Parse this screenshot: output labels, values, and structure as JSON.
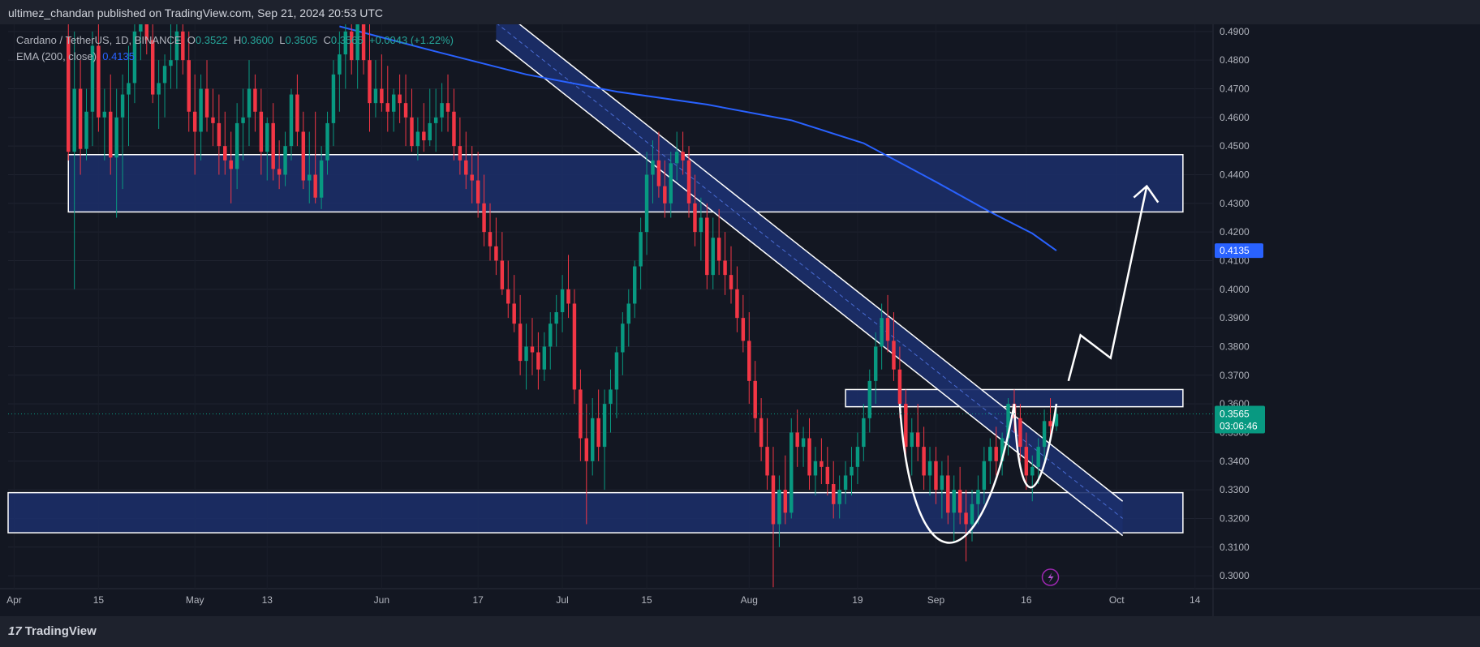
{
  "header": {
    "published_by": "ultimez_chandan published on TradingView.com, Sep 21, 2024 20:53 UTC"
  },
  "legend": {
    "symbol": "Cardano / TetherUS, 1D, BINANCE",
    "open_label": "O",
    "open": "0.3522",
    "high_label": "H",
    "high": "0.3600",
    "low_label": "L",
    "low": "0.3505",
    "close_label": "C",
    "close": "0.3565",
    "change": "+0.0043 (+1.22%)",
    "ema_label": "EMA (200, close)",
    "ema_value": "0.4135"
  },
  "price_axis": {
    "ticks": [
      "0.4900",
      "0.4800",
      "0.4700",
      "0.4600",
      "0.4500",
      "0.4400",
      "0.4300",
      "0.4200",
      "0.4100",
      "0.4000",
      "0.3900",
      "0.3800",
      "0.3700",
      "0.3600",
      "0.3500",
      "0.3400",
      "0.3300",
      "0.3200",
      "0.3100",
      "0.3000"
    ],
    "ema_tag": "0.4135",
    "last_price_tag": "0.3565",
    "countdown": "03:06:46",
    "colors": {
      "ema": "#2962ff",
      "last": "#089981"
    }
  },
  "time_axis": {
    "labels": [
      "Apr",
      "15",
      "May",
      "13",
      "Jun",
      "17",
      "Jul",
      "15",
      "Aug",
      "19",
      "Sep",
      "16",
      "Oct",
      "14"
    ]
  },
  "footer": {
    "brand": "TradingView",
    "brand_mark": "17"
  },
  "chart_data": {
    "type": "candlestick",
    "symbol": "Cardano / TetherUS",
    "interval": "1D",
    "exchange": "BINANCE",
    "y_range": [
      0.2955,
      0.4925
    ],
    "x_range": [
      "2024-03-31",
      "2024-10-17"
    ],
    "grid": true,
    "last_close": 0.3565,
    "ema_200_last": 0.4135,
    "ema_200_curve": [
      [
        "2024-05-25",
        0.4918
      ],
      [
        "2024-06-10",
        0.483
      ],
      [
        "2024-06-25",
        0.475
      ],
      [
        "2024-07-10",
        0.469
      ],
      [
        "2024-07-25",
        0.4645
      ],
      [
        "2024-08-08",
        0.459
      ],
      [
        "2024-08-20",
        0.451
      ],
      [
        "2024-09-01",
        0.4375
      ],
      [
        "2024-09-10",
        0.427
      ],
      [
        "2024-09-17",
        0.4195
      ],
      [
        "2024-09-21",
        0.4135
      ]
    ],
    "ohlc": [
      [
        "2024-04-10",
        0.488,
        0.51,
        0.445,
        0.448
      ],
      [
        "2024-04-11",
        0.448,
        0.49,
        0.4,
        0.47
      ],
      [
        "2024-04-12",
        0.47,
        0.48,
        0.44,
        0.449
      ],
      [
        "2024-04-13",
        0.449,
        0.47,
        0.445,
        0.462
      ],
      [
        "2024-04-14",
        0.462,
        0.49,
        0.45,
        0.485
      ],
      [
        "2024-04-15",
        0.485,
        0.5,
        0.455,
        0.46
      ],
      [
        "2024-04-16",
        0.46,
        0.47,
        0.445,
        0.462
      ],
      [
        "2024-04-17",
        0.462,
        0.475,
        0.44,
        0.446
      ],
      [
        "2024-04-18",
        0.446,
        0.47,
        0.425,
        0.46
      ],
      [
        "2024-04-19",
        0.46,
        0.475,
        0.435,
        0.468
      ],
      [
        "2024-04-20",
        0.468,
        0.485,
        0.45,
        0.472
      ],
      [
        "2024-04-21",
        0.472,
        0.5,
        0.465,
        0.49
      ],
      [
        "2024-04-22",
        0.49,
        0.51,
        0.48,
        0.5
      ],
      [
        "2024-04-23",
        0.5,
        0.512,
        0.482,
        0.487
      ],
      [
        "2024-04-24",
        0.487,
        0.505,
        0.465,
        0.468
      ],
      [
        "2024-04-25",
        0.468,
        0.48,
        0.456,
        0.472
      ],
      [
        "2024-04-26",
        0.472,
        0.482,
        0.46,
        0.478
      ],
      [
        "2024-04-27",
        0.478,
        0.51,
        0.47,
        0.48
      ],
      [
        "2024-04-28",
        0.48,
        0.505,
        0.47,
        0.49
      ],
      [
        "2024-04-29",
        0.49,
        0.51,
        0.475,
        0.48
      ],
      [
        "2024-04-30",
        0.48,
        0.49,
        0.455,
        0.462
      ],
      [
        "2024-05-01",
        0.462,
        0.475,
        0.44,
        0.455
      ],
      [
        "2024-05-02",
        0.455,
        0.475,
        0.445,
        0.47
      ],
      [
        "2024-05-03",
        0.47,
        0.48,
        0.455,
        0.46
      ],
      [
        "2024-05-04",
        0.46,
        0.47,
        0.45,
        0.458
      ],
      [
        "2024-05-05",
        0.458,
        0.468,
        0.44,
        0.45
      ],
      [
        "2024-05-06",
        0.45,
        0.462,
        0.44,
        0.445
      ],
      [
        "2024-05-07",
        0.445,
        0.455,
        0.43,
        0.442
      ],
      [
        "2024-05-08",
        0.442,
        0.465,
        0.435,
        0.458
      ],
      [
        "2024-05-09",
        0.458,
        0.47,
        0.445,
        0.46
      ],
      [
        "2024-05-10",
        0.46,
        0.48,
        0.45,
        0.47
      ],
      [
        "2024-05-11",
        0.47,
        0.475,
        0.455,
        0.462
      ],
      [
        "2024-05-12",
        0.462,
        0.47,
        0.44,
        0.448
      ],
      [
        "2024-05-13",
        0.448,
        0.46,
        0.438,
        0.458
      ],
      [
        "2024-05-14",
        0.458,
        0.465,
        0.438,
        0.442
      ],
      [
        "2024-05-15",
        0.442,
        0.452,
        0.435,
        0.44
      ],
      [
        "2024-05-16",
        0.44,
        0.455,
        0.436,
        0.45
      ],
      [
        "2024-05-17",
        0.45,
        0.47,
        0.445,
        0.468
      ],
      [
        "2024-05-18",
        0.468,
        0.475,
        0.45,
        0.455
      ],
      [
        "2024-05-19",
        0.455,
        0.462,
        0.435,
        0.438
      ],
      [
        "2024-05-20",
        0.438,
        0.455,
        0.43,
        0.44
      ],
      [
        "2024-05-21",
        0.44,
        0.462,
        0.43,
        0.432
      ],
      [
        "2024-05-22",
        0.432,
        0.45,
        0.428,
        0.445
      ],
      [
        "2024-05-23",
        0.445,
        0.462,
        0.44,
        0.458
      ],
      [
        "2024-05-24",
        0.458,
        0.48,
        0.45,
        0.475
      ],
      [
        "2024-05-25",
        0.475,
        0.49,
        0.462,
        0.482
      ],
      [
        "2024-05-26",
        0.482,
        0.495,
        0.47,
        0.49
      ],
      [
        "2024-05-27",
        0.49,
        0.5,
        0.475,
        0.48
      ],
      [
        "2024-05-28",
        0.48,
        0.5,
        0.47,
        0.495
      ],
      [
        "2024-05-29",
        0.495,
        0.505,
        0.475,
        0.48
      ],
      [
        "2024-05-30",
        0.48,
        0.495,
        0.455,
        0.465
      ],
      [
        "2024-05-31",
        0.465,
        0.48,
        0.46,
        0.47
      ],
      [
        "2024-06-01",
        0.47,
        0.482,
        0.462,
        0.465
      ],
      [
        "2024-06-02",
        0.465,
        0.478,
        0.455,
        0.462
      ],
      [
        "2024-06-03",
        0.462,
        0.47,
        0.455,
        0.468
      ],
      [
        "2024-06-04",
        0.468,
        0.475,
        0.458,
        0.465
      ],
      [
        "2024-06-05",
        0.465,
        0.475,
        0.45,
        0.46
      ],
      [
        "2024-06-06",
        0.46,
        0.47,
        0.448,
        0.45
      ],
      [
        "2024-06-07",
        0.45,
        0.46,
        0.445,
        0.455
      ],
      [
        "2024-06-08",
        0.455,
        0.465,
        0.448,
        0.452
      ],
      [
        "2024-06-09",
        0.452,
        0.47,
        0.45,
        0.458
      ],
      [
        "2024-06-10",
        0.458,
        0.47,
        0.448,
        0.46
      ],
      [
        "2024-06-11",
        0.46,
        0.472,
        0.455,
        0.465
      ],
      [
        "2024-06-12",
        0.465,
        0.475,
        0.455,
        0.462
      ],
      [
        "2024-06-13",
        0.462,
        0.47,
        0.445,
        0.45
      ],
      [
        "2024-06-14",
        0.45,
        0.46,
        0.44,
        0.445
      ],
      [
        "2024-06-15",
        0.445,
        0.455,
        0.435,
        0.44
      ],
      [
        "2024-06-16",
        0.44,
        0.45,
        0.43,
        0.438
      ],
      [
        "2024-06-17",
        0.438,
        0.448,
        0.425,
        0.43
      ],
      [
        "2024-06-18",
        0.43,
        0.44,
        0.415,
        0.42
      ],
      [
        "2024-06-19",
        0.42,
        0.43,
        0.41,
        0.415
      ],
      [
        "2024-06-20",
        0.415,
        0.425,
        0.405,
        0.41
      ],
      [
        "2024-06-21",
        0.41,
        0.42,
        0.398,
        0.4
      ],
      [
        "2024-06-22",
        0.4,
        0.41,
        0.39,
        0.395
      ],
      [
        "2024-06-23",
        0.395,
        0.405,
        0.385,
        0.388
      ],
      [
        "2024-06-24",
        0.388,
        0.398,
        0.37,
        0.375
      ],
      [
        "2024-06-25",
        0.375,
        0.388,
        0.365,
        0.38
      ],
      [
        "2024-06-26",
        0.38,
        0.39,
        0.37,
        0.378
      ],
      [
        "2024-06-27",
        0.378,
        0.385,
        0.365,
        0.372
      ],
      [
        "2024-06-28",
        0.372,
        0.385,
        0.368,
        0.38
      ],
      [
        "2024-06-29",
        0.38,
        0.392,
        0.372,
        0.388
      ],
      [
        "2024-06-30",
        0.388,
        0.398,
        0.38,
        0.392
      ],
      [
        "2024-07-01",
        0.392,
        0.405,
        0.385,
        0.4
      ],
      [
        "2024-07-02",
        0.4,
        0.412,
        0.39,
        0.395
      ],
      [
        "2024-07-03",
        0.395,
        0.4,
        0.36,
        0.365
      ],
      [
        "2024-07-04",
        0.365,
        0.372,
        0.34,
        0.348
      ],
      [
        "2024-07-05",
        0.348,
        0.36,
        0.318,
        0.34
      ],
      [
        "2024-07-06",
        0.34,
        0.362,
        0.335,
        0.355
      ],
      [
        "2024-07-07",
        0.355,
        0.365,
        0.34,
        0.345
      ],
      [
        "2024-07-08",
        0.345,
        0.365,
        0.33,
        0.36
      ],
      [
        "2024-07-09",
        0.36,
        0.372,
        0.35,
        0.365
      ],
      [
        "2024-07-10",
        0.365,
        0.38,
        0.355,
        0.378
      ],
      [
        "2024-07-11",
        0.378,
        0.392,
        0.37,
        0.388
      ],
      [
        "2024-07-12",
        0.388,
        0.4,
        0.38,
        0.395
      ],
      [
        "2024-07-13",
        0.395,
        0.41,
        0.39,
        0.408
      ],
      [
        "2024-07-14",
        0.408,
        0.425,
        0.4,
        0.42
      ],
      [
        "2024-07-15",
        0.42,
        0.448,
        0.412,
        0.44
      ],
      [
        "2024-07-16",
        0.44,
        0.452,
        0.43,
        0.445
      ],
      [
        "2024-07-17",
        0.445,
        0.455,
        0.432,
        0.436
      ],
      [
        "2024-07-18",
        0.436,
        0.445,
        0.425,
        0.43
      ],
      [
        "2024-07-19",
        0.43,
        0.448,
        0.425,
        0.444
      ],
      [
        "2024-07-20",
        0.444,
        0.455,
        0.438,
        0.448
      ],
      [
        "2024-07-21",
        0.448,
        0.455,
        0.44,
        0.445
      ],
      [
        "2024-07-22",
        0.445,
        0.45,
        0.425,
        0.43
      ],
      [
        "2024-07-23",
        0.43,
        0.44,
        0.415,
        0.42
      ],
      [
        "2024-07-24",
        0.42,
        0.432,
        0.41,
        0.425
      ],
      [
        "2024-07-25",
        0.425,
        0.43,
        0.4,
        0.405
      ],
      [
        "2024-07-26",
        0.405,
        0.425,
        0.4,
        0.418
      ],
      [
        "2024-07-27",
        0.418,
        0.428,
        0.405,
        0.41
      ],
      [
        "2024-07-28",
        0.41,
        0.42,
        0.398,
        0.405
      ],
      [
        "2024-07-29",
        0.405,
        0.415,
        0.395,
        0.4
      ],
      [
        "2024-07-30",
        0.4,
        0.408,
        0.385,
        0.39
      ],
      [
        "2024-07-31",
        0.39,
        0.398,
        0.378,
        0.382
      ],
      [
        "2024-08-01",
        0.382,
        0.392,
        0.36,
        0.368
      ],
      [
        "2024-08-02",
        0.368,
        0.375,
        0.35,
        0.355
      ],
      [
        "2024-08-03",
        0.355,
        0.362,
        0.34,
        0.345
      ],
      [
        "2024-08-04",
        0.345,
        0.355,
        0.33,
        0.335
      ],
      [
        "2024-08-05",
        0.335,
        0.345,
        0.296,
        0.318
      ],
      [
        "2024-08-06",
        0.318,
        0.335,
        0.31,
        0.33
      ],
      [
        "2024-08-07",
        0.33,
        0.342,
        0.318,
        0.322
      ],
      [
        "2024-08-08",
        0.322,
        0.355,
        0.32,
        0.35
      ],
      [
        "2024-08-09",
        0.35,
        0.358,
        0.338,
        0.345
      ],
      [
        "2024-08-10",
        0.345,
        0.352,
        0.338,
        0.348
      ],
      [
        "2024-08-11",
        0.348,
        0.355,
        0.33,
        0.335
      ],
      [
        "2024-08-12",
        0.335,
        0.345,
        0.328,
        0.34
      ],
      [
        "2024-08-13",
        0.34,
        0.348,
        0.332,
        0.338
      ],
      [
        "2024-08-14",
        0.338,
        0.345,
        0.328,
        0.332
      ],
      [
        "2024-08-15",
        0.332,
        0.34,
        0.32,
        0.325
      ],
      [
        "2024-08-16",
        0.325,
        0.335,
        0.32,
        0.33
      ],
      [
        "2024-08-17",
        0.33,
        0.34,
        0.325,
        0.335
      ],
      [
        "2024-08-18",
        0.335,
        0.345,
        0.328,
        0.338
      ],
      [
        "2024-08-19",
        0.338,
        0.35,
        0.332,
        0.345
      ],
      [
        "2024-08-20",
        0.345,
        0.36,
        0.34,
        0.355
      ],
      [
        "2024-08-21",
        0.355,
        0.372,
        0.35,
        0.368
      ],
      [
        "2024-08-22",
        0.368,
        0.385,
        0.36,
        0.38
      ],
      [
        "2024-08-23",
        0.38,
        0.395,
        0.372,
        0.39
      ],
      [
        "2024-08-24",
        0.39,
        0.398,
        0.378,
        0.382
      ],
      [
        "2024-08-25",
        0.382,
        0.392,
        0.368,
        0.372
      ],
      [
        "2024-08-26",
        0.372,
        0.38,
        0.355,
        0.36
      ],
      [
        "2024-08-27",
        0.36,
        0.365,
        0.34,
        0.345
      ],
      [
        "2024-08-28",
        0.345,
        0.355,
        0.335,
        0.35
      ],
      [
        "2024-08-29",
        0.35,
        0.36,
        0.34,
        0.345
      ],
      [
        "2024-08-30",
        0.345,
        0.352,
        0.33,
        0.335
      ],
      [
        "2024-08-31",
        0.335,
        0.345,
        0.328,
        0.34
      ],
      [
        "2024-09-01",
        0.34,
        0.345,
        0.325,
        0.33
      ],
      [
        "2024-09-02",
        0.33,
        0.34,
        0.32,
        0.335
      ],
      [
        "2024-09-03",
        0.335,
        0.342,
        0.318,
        0.322
      ],
      [
        "2024-09-04",
        0.322,
        0.335,
        0.312,
        0.33
      ],
      [
        "2024-09-05",
        0.33,
        0.338,
        0.318,
        0.322
      ],
      [
        "2024-09-06",
        0.322,
        0.33,
        0.305,
        0.318
      ],
      [
        "2024-09-07",
        0.318,
        0.33,
        0.312,
        0.325
      ],
      [
        "2024-09-08",
        0.325,
        0.335,
        0.318,
        0.33
      ],
      [
        "2024-09-09",
        0.33,
        0.345,
        0.325,
        0.34
      ],
      [
        "2024-09-10",
        0.34,
        0.348,
        0.332,
        0.345
      ],
      [
        "2024-09-11",
        0.345,
        0.352,
        0.335,
        0.34
      ],
      [
        "2024-09-12",
        0.34,
        0.35,
        0.335,
        0.348
      ],
      [
        "2024-09-13",
        0.348,
        0.362,
        0.342,
        0.36
      ],
      [
        "2024-09-14",
        0.36,
        0.365,
        0.35,
        0.355
      ],
      [
        "2024-09-15",
        0.355,
        0.36,
        0.34,
        0.345
      ],
      [
        "2024-09-16",
        0.345,
        0.35,
        0.33,
        0.335
      ],
      [
        "2024-09-17",
        0.335,
        0.342,
        0.326,
        0.338
      ],
      [
        "2024-09-18",
        0.338,
        0.348,
        0.332,
        0.345
      ],
      [
        "2024-09-19",
        0.345,
        0.358,
        0.34,
        0.354
      ],
      [
        "2024-09-20",
        0.354,
        0.362,
        0.348,
        0.3522
      ],
      [
        "2024-09-21",
        0.3522,
        0.36,
        0.3505,
        0.3565
      ]
    ],
    "zones": [
      {
        "from_date": "2024-04-10",
        "to_date": "2024-10-12",
        "low": 0.427,
        "high": 0.447
      },
      {
        "from_date": "2024-08-17",
        "to_date": "2024-10-12",
        "low": 0.359,
        "high": 0.365
      },
      {
        "from_date": "2024-03-31",
        "to_date": "2024-10-12",
        "low": 0.315,
        "high": 0.329
      }
    ],
    "channel": {
      "start": [
        "2024-06-20",
        0.493
      ],
      "end": [
        "2024-10-02",
        0.32
      ],
      "width": 0.006
    },
    "pattern": "cup and handle",
    "projection": [
      [
        "2024-09-23",
        0.368
      ],
      [
        "2024-09-25",
        0.384
      ],
      [
        "2024-09-30",
        0.376
      ],
      [
        "2024-10-06",
        0.436
      ]
    ]
  }
}
